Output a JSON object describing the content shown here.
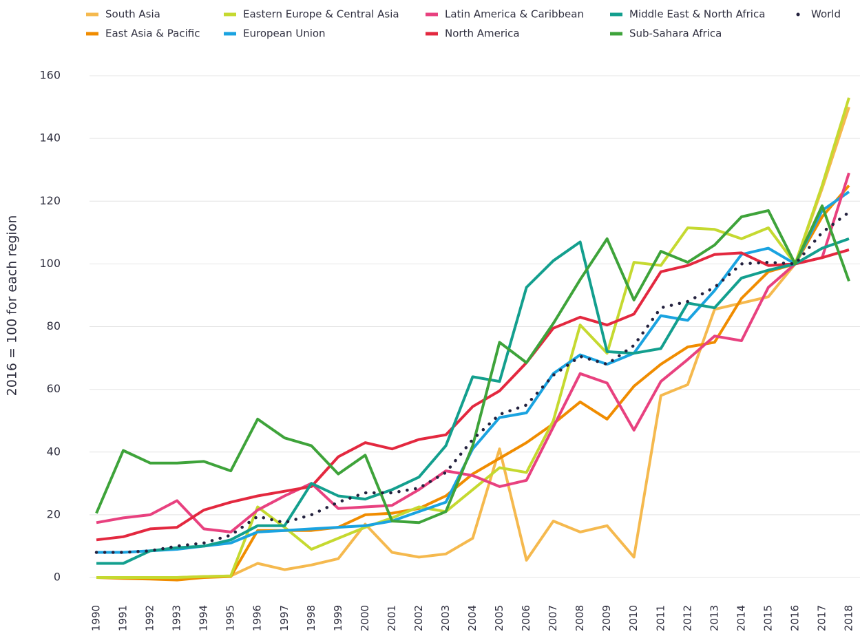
{
  "chart_data": {
    "type": "line",
    "y_label": "2016 = 100 for each region",
    "categories": [
      "1990",
      "1991",
      "1992",
      "1993",
      "1994",
      "1995",
      "1996",
      "1997",
      "1998",
      "1999",
      "2000",
      "2001",
      "2002",
      "2003",
      "2004",
      "2005",
      "2006",
      "2007",
      "2008",
      "2009",
      "2010",
      "2011",
      "2012",
      "2013",
      "2014",
      "2015",
      "2016",
      "2017",
      "2018"
    ],
    "ylim": [
      0,
      160
    ],
    "yticks": [
      0,
      20,
      40,
      60,
      80,
      100,
      120,
      140,
      160
    ],
    "grid": true,
    "series": [
      {
        "name": "South Asia",
        "color": "#f5b94e",
        "values": [
          0,
          0,
          0,
          0,
          0.3,
          0.5,
          4.5,
          2.5,
          4,
          6,
          17,
          8,
          6.5,
          7.5,
          12.5,
          41,
          5.5,
          18,
          14.5,
          16.5,
          6.5,
          58,
          61.5,
          85.5,
          87.5,
          89.5,
          100,
          124,
          150
        ]
      },
      {
        "name": "East Asia & Pacific",
        "color": "#f08c00",
        "values": [
          0,
          -0.3,
          -0.5,
          -0.8,
          0,
          0.3,
          15,
          15,
          15,
          16,
          20,
          20.5,
          22,
          26,
          33,
          38,
          43,
          49,
          56,
          50.5,
          61,
          68,
          73.5,
          75,
          89,
          97.5,
          100,
          115,
          125
        ]
      },
      {
        "name": "Eastern Europe & Central Asia",
        "color": "#c5d930",
        "values": [
          0,
          0,
          0,
          0,
          0.3,
          0.5,
          22.5,
          16,
          9,
          12.5,
          16,
          19,
          22.5,
          21,
          28,
          35,
          33.5,
          50,
          80.5,
          71.5,
          100.5,
          99.5,
          111.5,
          111,
          108,
          111.5,
          100,
          125,
          153
        ]
      },
      {
        "name": "European Union",
        "color": "#1aa3e0",
        "values": [
          8,
          8,
          8.5,
          9,
          10,
          11,
          14.5,
          15,
          15.5,
          16,
          16.5,
          18,
          21,
          24,
          41,
          51,
          52.5,
          65,
          71,
          68,
          71.5,
          83.5,
          82,
          91.5,
          103,
          105,
          100,
          117,
          123
        ]
      },
      {
        "name": "Latin America & Caribbean",
        "color": "#e8417f",
        "values": [
          17.5,
          19,
          20,
          24.5,
          15.5,
          14.5,
          21.5,
          26,
          30,
          22,
          22.5,
          23,
          28,
          34,
          32.5,
          29,
          31,
          48,
          65,
          62,
          47,
          62.5,
          69.5,
          77,
          75.5,
          92.5,
          100,
          102,
          129
        ]
      },
      {
        "name": "North America",
        "color": "#e3283f",
        "values": [
          12,
          13,
          15.5,
          16,
          21.5,
          24,
          26,
          27.5,
          29,
          38.5,
          43,
          41,
          44,
          45.5,
          54.5,
          59.5,
          68.5,
          79.5,
          83,
          80.5,
          84,
          97.5,
          99.5,
          103,
          103.5,
          99.5,
          100,
          102,
          104.5
        ]
      },
      {
        "name": "Middle East & North Africa",
        "color": "#139f8e",
        "values": [
          4.5,
          4.5,
          8.5,
          9.5,
          10,
          12,
          16.5,
          16.5,
          30,
          26,
          25,
          28,
          32,
          42,
          64,
          62.5,
          92.5,
          101,
          107,
          72,
          71.5,
          73,
          87.5,
          86,
          95.5,
          98,
          100,
          105,
          108
        ]
      },
      {
        "name": "Sub-Sahara Africa",
        "color": "#3ea33a",
        "values": [
          20.5,
          40.5,
          36.5,
          36.5,
          37,
          34,
          50.5,
          44.5,
          42,
          33,
          39,
          18,
          17.5,
          21,
          42,
          75,
          68.5,
          81,
          95,
          108,
          88.5,
          104,
          100.5,
          106,
          115,
          117,
          100,
          118.5,
          94.5
        ]
      },
      {
        "name": "World",
        "color": "#23213e",
        "dotted": true,
        "values": [
          8,
          8,
          8.5,
          10,
          11,
          13.5,
          19.5,
          17.5,
          20,
          24,
          27,
          27,
          28.5,
          33.5,
          44,
          52,
          55,
          64.5,
          70.5,
          68,
          74,
          86,
          88,
          92.5,
          100,
          100.5,
          100,
          110,
          116.5
        ]
      }
    ]
  }
}
